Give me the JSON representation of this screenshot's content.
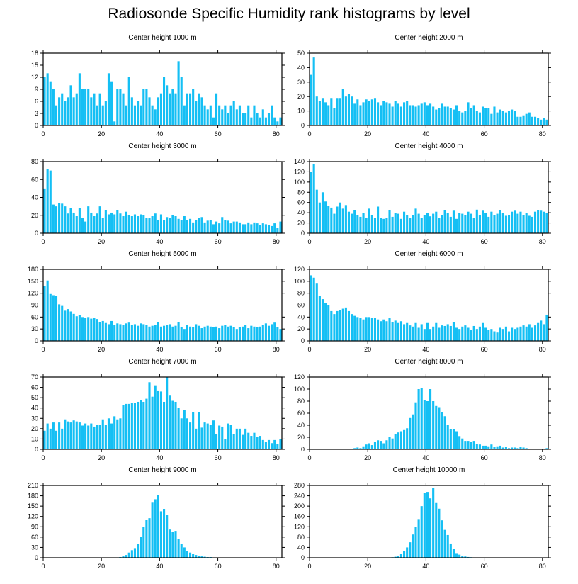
{
  "title": "Radiosonde Specific Humidity rank histograms by level",
  "colors": {
    "bar": "#14bff4",
    "axis": "#000000"
  },
  "chart_data": [
    {
      "type": "bar",
      "title": "Center height 1000 m",
      "xlim": [
        0,
        82
      ],
      "ylim": [
        0,
        18
      ],
      "xticks": [
        0,
        20,
        40,
        60,
        80
      ],
      "yticks": [
        0,
        3,
        6,
        9,
        12,
        15,
        18
      ],
      "values": [
        12,
        13,
        11,
        9,
        5,
        7,
        8,
        6,
        7,
        10,
        7,
        8,
        13,
        9,
        9,
        9,
        7,
        8,
        5,
        8,
        5,
        6,
        13,
        11,
        1,
        9,
        9,
        8,
        5,
        12,
        7,
        5,
        6,
        5,
        9,
        9,
        7,
        5,
        4,
        7,
        8,
        12,
        10,
        8,
        9,
        8,
        16,
        12,
        5,
        8,
        8,
        9,
        6,
        8,
        7,
        5,
        4,
        5,
        2,
        8,
        5,
        4,
        5,
        3,
        5,
        6,
        4,
        5,
        3,
        3,
        5,
        2,
        5,
        3,
        2,
        4,
        2,
        3,
        5,
        2,
        1,
        2
      ]
    },
    {
      "type": "bar",
      "title": "Center height 2000 m",
      "xlim": [
        0,
        82
      ],
      "ylim": [
        0,
        50
      ],
      "xticks": [
        0,
        20,
        40,
        60,
        80
      ],
      "yticks": [
        0,
        10,
        20,
        30,
        40,
        50
      ],
      "values": [
        35,
        47,
        20,
        17,
        19,
        16,
        14,
        19,
        12,
        19,
        19,
        25,
        20,
        22,
        20,
        15,
        18,
        14,
        16,
        18,
        17,
        18,
        19,
        16,
        14,
        17,
        16,
        15,
        13,
        17,
        15,
        13,
        16,
        17,
        14,
        14,
        13,
        14,
        15,
        16,
        14,
        15,
        13,
        11,
        12,
        15,
        13,
        13,
        12,
        11,
        14,
        10,
        9,
        10,
        16,
        12,
        14,
        10,
        9,
        13,
        12,
        12,
        8,
        13,
        9,
        11,
        10,
        9,
        10,
        11,
        10,
        6,
        6,
        7,
        8,
        9,
        6,
        6,
        5,
        4,
        5,
        4
      ]
    },
    {
      "type": "bar",
      "title": "Center height 3000 m",
      "xlim": [
        0,
        82
      ],
      "ylim": [
        0,
        80
      ],
      "xticks": [
        0,
        20,
        40,
        60,
        80
      ],
      "yticks": [
        0,
        20,
        40,
        60,
        80
      ],
      "values": [
        50,
        72,
        70,
        32,
        30,
        34,
        33,
        30,
        22,
        28,
        23,
        19,
        28,
        17,
        13,
        30,
        23,
        19,
        22,
        30,
        17,
        26,
        21,
        23,
        21,
        26,
        22,
        19,
        24,
        20,
        19,
        21,
        19,
        21,
        20,
        17,
        17,
        19,
        22,
        15,
        21,
        15,
        18,
        17,
        20,
        19,
        16,
        15,
        19,
        15,
        16,
        12,
        15,
        17,
        18,
        12,
        14,
        15,
        10,
        13,
        11,
        18,
        15,
        14,
        11,
        13,
        13,
        12,
        10,
        10,
        12,
        10,
        12,
        11,
        9,
        11,
        10,
        9,
        8,
        11,
        6,
        13
      ]
    },
    {
      "type": "bar",
      "title": "Center height 4000 m",
      "xlim": [
        0,
        82
      ],
      "ylim": [
        0,
        140
      ],
      "xticks": [
        0,
        20,
        40,
        60,
        80
      ],
      "yticks": [
        0,
        20,
        40,
        60,
        80,
        100,
        120,
        140
      ],
      "values": [
        120,
        135,
        85,
        60,
        80,
        62,
        54,
        50,
        38,
        52,
        60,
        48,
        55,
        42,
        38,
        45,
        35,
        32,
        40,
        30,
        48,
        35,
        30,
        52,
        30,
        28,
        30,
        45,
        32,
        40,
        38,
        28,
        42,
        35,
        30,
        35,
        48,
        38,
        30,
        35,
        40,
        33,
        38,
        42,
        30,
        35,
        45,
        40,
        32,
        44,
        28,
        40,
        38,
        35,
        42,
        38,
        30,
        46,
        35,
        44,
        40,
        32,
        42,
        35,
        38,
        45,
        40,
        34,
        35,
        42,
        44,
        38,
        42,
        36,
        40,
        34,
        32,
        42,
        45,
        44,
        42,
        40
      ]
    },
    {
      "type": "bar",
      "title": "Center height 5000 m",
      "xlim": [
        0,
        82
      ],
      "ylim": [
        0,
        180
      ],
      "xticks": [
        0,
        20,
        40,
        60,
        80
      ],
      "yticks": [
        0,
        30,
        60,
        90,
        120,
        150,
        180
      ],
      "values": [
        138,
        152,
        118,
        115,
        114,
        92,
        88,
        76,
        80,
        74,
        68,
        62,
        65,
        60,
        58,
        60,
        56,
        58,
        55,
        48,
        50,
        45,
        42,
        50,
        40,
        44,
        42,
        40,
        44,
        46,
        40,
        42,
        38,
        44,
        42,
        40,
        36,
        38,
        40,
        48,
        36,
        38,
        40,
        42,
        36,
        38,
        48,
        35,
        30,
        40,
        36,
        34,
        42,
        38,
        32,
        36,
        38,
        36,
        34,
        36,
        32,
        38,
        40,
        36,
        38,
        35,
        30,
        34,
        36,
        40,
        32,
        38,
        36,
        34,
        36,
        40,
        44,
        38,
        42,
        46,
        34,
        30
      ]
    },
    {
      "type": "bar",
      "title": "Center height 6000 m",
      "xlim": [
        0,
        82
      ],
      "ylim": [
        0,
        120
      ],
      "xticks": [
        0,
        20,
        40,
        60,
        80
      ],
      "yticks": [
        0,
        20,
        40,
        60,
        80,
        100,
        120
      ],
      "values": [
        110,
        106,
        96,
        76,
        70,
        64,
        60,
        50,
        45,
        50,
        52,
        54,
        56,
        50,
        45,
        42,
        40,
        38,
        36,
        40,
        40,
        38,
        38,
        36,
        33,
        36,
        33,
        38,
        32,
        34,
        30,
        33,
        28,
        30,
        26,
        24,
        30,
        22,
        28,
        20,
        30,
        20,
        24,
        30,
        22,
        26,
        25,
        28,
        25,
        32,
        22,
        20,
        24,
        26,
        22,
        18,
        25,
        20,
        24,
        30,
        22,
        18,
        20,
        16,
        14,
        22,
        20,
        24,
        16,
        22,
        20,
        22,
        24,
        26,
        24,
        28,
        22,
        26,
        30,
        34,
        28,
        44
      ]
    },
    {
      "type": "bar",
      "title": "Center height 7000 m",
      "xlim": [
        0,
        82
      ],
      "ylim": [
        0,
        70
      ],
      "xticks": [
        0,
        20,
        40,
        60,
        80
      ],
      "yticks": [
        0,
        10,
        20,
        30,
        40,
        50,
        60,
        70
      ],
      "values": [
        18,
        25,
        20,
        26,
        18,
        26,
        20,
        29,
        27,
        26,
        28,
        27,
        26,
        23,
        25,
        23,
        25,
        22,
        24,
        24,
        29,
        24,
        30,
        25,
        32,
        29,
        30,
        43,
        44,
        44,
        45,
        45,
        46,
        48,
        46,
        49,
        65,
        51,
        62,
        57,
        56,
        46,
        70,
        52,
        47,
        46,
        40,
        30,
        38,
        30,
        26,
        36,
        20,
        36,
        21,
        26,
        25,
        24,
        28,
        15,
        23,
        22,
        10,
        25,
        24,
        15,
        20,
        20,
        14,
        20,
        16,
        13,
        16,
        12,
        13,
        9,
        7,
        9,
        6,
        9,
        5,
        10
      ]
    },
    {
      "type": "bar",
      "title": "Center height 8000 m",
      "xlim": [
        0,
        82
      ],
      "ylim": [
        0,
        120
      ],
      "xticks": [
        0,
        20,
        40,
        60,
        80
      ],
      "yticks": [
        0,
        20,
        40,
        60,
        80,
        100,
        120
      ],
      "values": [
        0,
        0,
        0,
        0,
        0,
        0,
        0,
        0,
        0,
        0,
        0,
        0,
        0,
        0,
        1,
        2,
        3,
        2,
        5,
        8,
        10,
        7,
        12,
        15,
        14,
        10,
        15,
        20,
        18,
        25,
        28,
        30,
        32,
        35,
        52,
        58,
        78,
        100,
        102,
        82,
        80,
        100,
        80,
        72,
        70,
        62,
        55,
        40,
        34,
        33,
        30,
        22,
        18,
        14,
        14,
        12,
        14,
        9,
        8,
        6,
        6,
        5,
        8,
        4,
        5,
        6,
        3,
        4,
        2,
        3,
        3,
        2,
        4,
        3,
        2,
        1,
        1,
        1,
        1,
        1,
        1,
        2
      ]
    },
    {
      "type": "bar",
      "title": "Center height 9000 m",
      "xlim": [
        0,
        82
      ],
      "ylim": [
        0,
        210
      ],
      "xticks": [
        0,
        20,
        40,
        60,
        80
      ],
      "yticks": [
        0,
        30,
        60,
        90,
        120,
        150,
        180,
        210
      ],
      "values": [
        0,
        0,
        0,
        0,
        0,
        0,
        0,
        0,
        0,
        0,
        0,
        0,
        0,
        0,
        0,
        0,
        0,
        0,
        0,
        0,
        0,
        0,
        0,
        0,
        0,
        1,
        2,
        4,
        8,
        15,
        22,
        28,
        40,
        60,
        90,
        110,
        115,
        160,
        170,
        182,
        135,
        142,
        125,
        82,
        75,
        78,
        55,
        40,
        30,
        20,
        15,
        12,
        8,
        6,
        4,
        3,
        2,
        2,
        1,
        1,
        1,
        1,
        0,
        0,
        0,
        0,
        0,
        0,
        0,
        0,
        0,
        0,
        0,
        0,
        0,
        0,
        0,
        0,
        0,
        0,
        0,
        0
      ]
    },
    {
      "type": "bar",
      "title": "Center height 10000 m",
      "xlim": [
        0,
        82
      ],
      "ylim": [
        0,
        280
      ],
      "xticks": [
        0,
        20,
        40,
        60,
        80
      ],
      "yticks": [
        0,
        40,
        80,
        120,
        160,
        200,
        240,
        280
      ],
      "values": [
        0,
        0,
        0,
        0,
        0,
        0,
        0,
        0,
        0,
        0,
        0,
        0,
        0,
        0,
        0,
        0,
        0,
        0,
        0,
        0,
        0,
        0,
        0,
        0,
        0,
        0,
        0,
        1,
        2,
        4,
        8,
        15,
        25,
        40,
        60,
        90,
        120,
        150,
        200,
        250,
        255,
        230,
        270,
        212,
        190,
        145,
        108,
        88,
        55,
        35,
        18,
        12,
        8,
        5,
        3,
        2,
        1,
        1,
        1,
        0,
        0,
        0,
        0,
        0,
        0,
        0,
        0,
        0,
        0,
        0,
        0,
        0,
        0,
        0,
        0,
        0,
        0,
        0,
        0,
        0,
        0,
        0
      ]
    }
  ]
}
